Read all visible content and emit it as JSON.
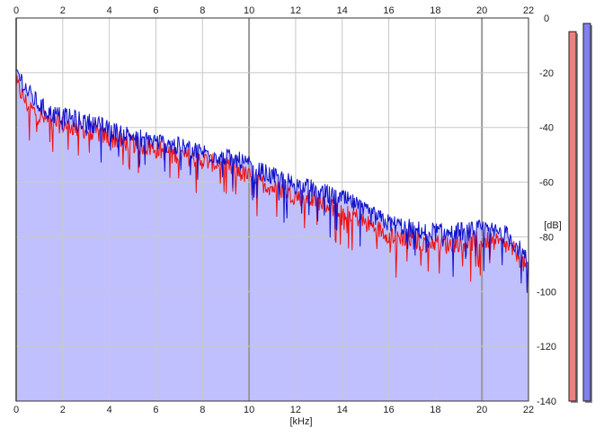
{
  "chart_data": {
    "type": "area",
    "title": "",
    "xlabel": "[kHz]",
    "ylabel": "[dB]",
    "x_unit": "[kHz]",
    "y_unit": "[dB]",
    "xlim": [
      0,
      22
    ],
    "ylim": [
      -140,
      0
    ],
    "x_ticks": [
      "0",
      "2",
      "4",
      "6",
      "8",
      "10",
      "12",
      "14",
      "16",
      "18",
      "20",
      "22"
    ],
    "y_ticks": [
      "0",
      "-20",
      "-40",
      "-60",
      "-80",
      "-100",
      "-120",
      "-140"
    ],
    "grid": true,
    "x": [
      0,
      0.5,
      1,
      1.5,
      2,
      2.5,
      3,
      3.5,
      4,
      4.5,
      5,
      5.5,
      6,
      6.5,
      7,
      7.5,
      8,
      8.5,
      9,
      9.5,
      10,
      10.5,
      11,
      11.5,
      12,
      12.5,
      13,
      13.5,
      14,
      14.5,
      15,
      15.5,
      16,
      16.5,
      17,
      17.5,
      18,
      18.5,
      19,
      19.5,
      20,
      20.5,
      21,
      21.5,
      22
    ],
    "series": [
      {
        "color": "#ee1111",
        "values": [
          -24,
          -32,
          -36,
          -38,
          -39,
          -40,
          -41,
          -42,
          -44,
          -45,
          -46,
          -47,
          -48,
          -49,
          -50,
          -51,
          -52,
          -53,
          -54,
          -56,
          -58,
          -60,
          -62,
          -63,
          -65,
          -66,
          -67,
          -69,
          -70,
          -72,
          -75,
          -77,
          -79,
          -80,
          -81,
          -82,
          -82,
          -83,
          -82,
          -82,
          -81,
          -82,
          -83,
          -86,
          -93
        ]
      },
      {
        "color": "#1111cc",
        "values": [
          -19,
          -27,
          -32,
          -35,
          -36,
          -37,
          -38,
          -39,
          -41,
          -42,
          -43,
          -44,
          -45,
          -46,
          -47,
          -48,
          -49,
          -50,
          -51,
          -52,
          -54,
          -56,
          -58,
          -59,
          -61,
          -62,
          -63,
          -65,
          -66,
          -68,
          -71,
          -73,
          -75,
          -76,
          -77,
          -78,
          -78,
          -79,
          -78,
          -78,
          -77,
          -78,
          -79,
          -83,
          -90
        ]
      }
    ],
    "fill_color": "#c0c0ff",
    "level_meters": [
      {
        "color": "#ee8080",
        "level_db": -5
      },
      {
        "color": "#8080ee",
        "level_db": -2
      }
    ]
  }
}
